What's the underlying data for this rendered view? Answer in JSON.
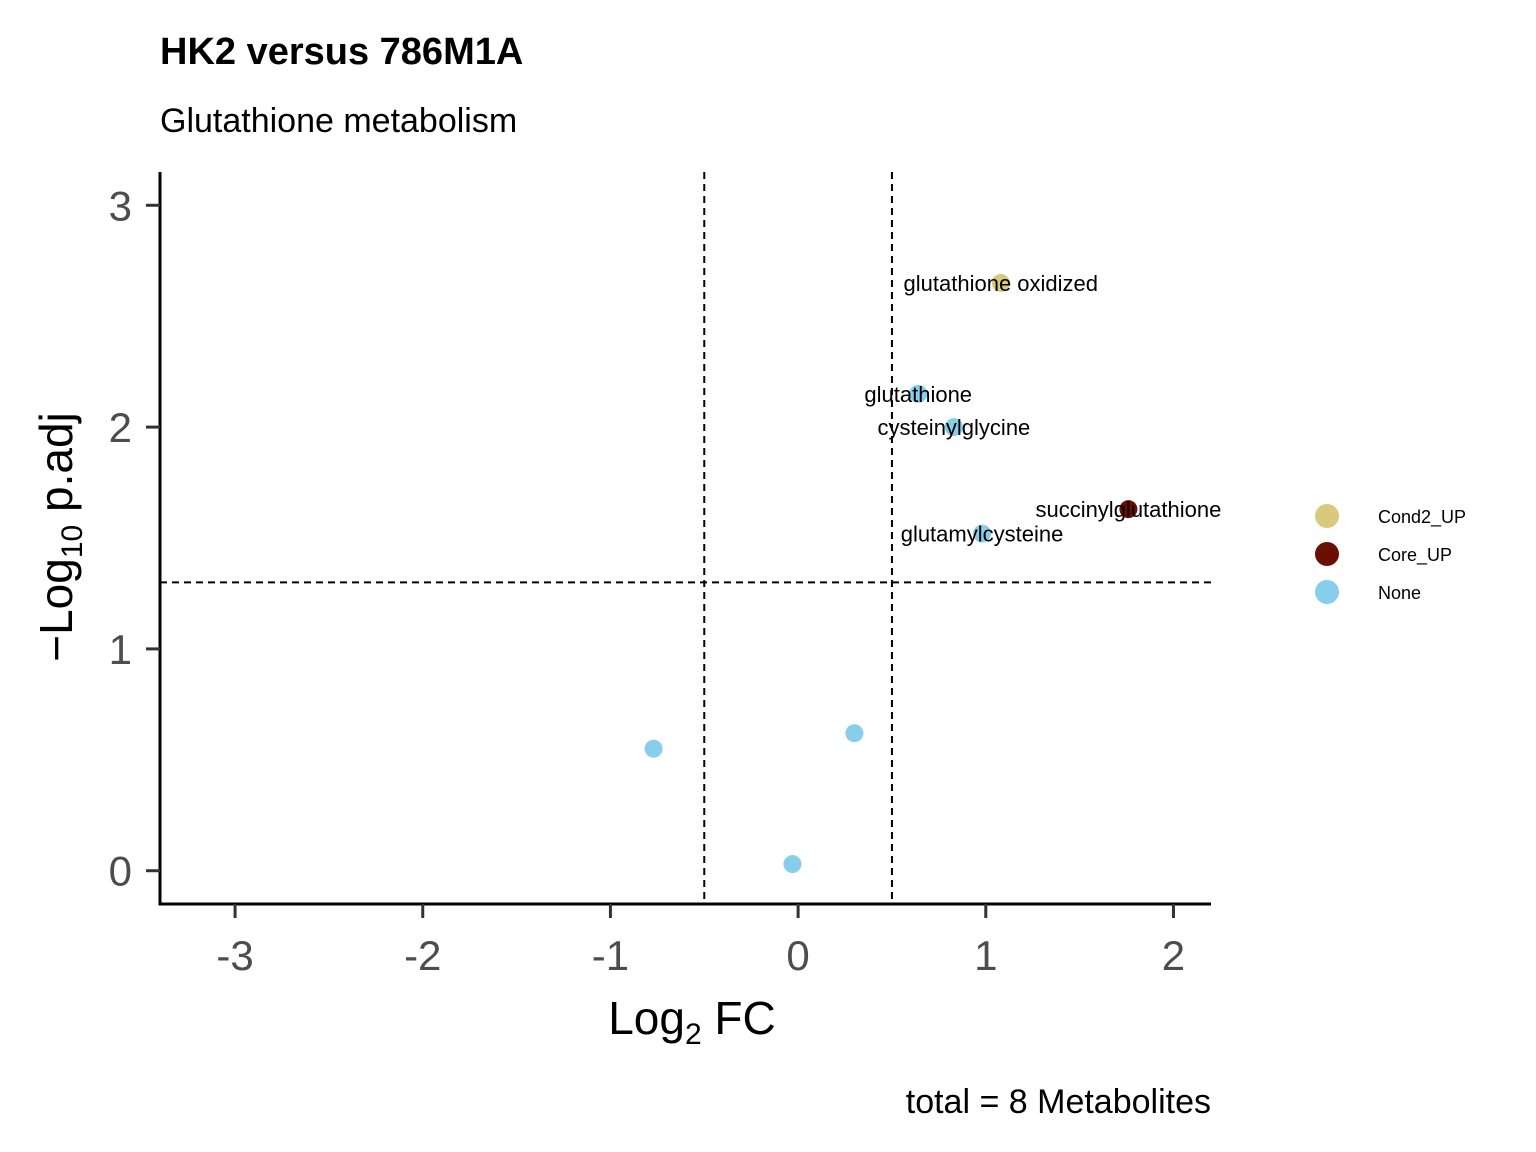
{
  "chart_data": {
    "type": "scatter",
    "title": "HK2 versus 786M1A",
    "subtitle": "Glutathione metabolism",
    "xlabel": {
      "main": "Log",
      "sub": "2",
      "rest": " FC"
    },
    "ylabel": {
      "pre": "−Log",
      "sub": "10",
      "rest": " p.adj"
    },
    "xlim": [
      -3.4,
      2.2
    ],
    "ylim": [
      -0.15,
      3.15
    ],
    "xticks": [
      -3,
      -2,
      -1,
      0,
      1,
      2
    ],
    "xtick_labels": [
      "-3",
      "-2",
      "-1",
      "0",
      "1",
      "2"
    ],
    "yticks": [
      0,
      1,
      2,
      3
    ],
    "ytick_labels": [
      "0",
      "1",
      "2",
      "3"
    ],
    "vlines": [
      -0.5,
      0.5
    ],
    "hline": 1.3,
    "grid": false,
    "legend_position": "right",
    "categories": [
      {
        "name": "Cond2_UP",
        "color": "#d9c97a"
      },
      {
        "name": "Core_UP",
        "color": "#6b0f05"
      },
      {
        "name": "None",
        "color": "#87ceeb"
      }
    ],
    "points": [
      {
        "x": 1.08,
        "y": 2.65,
        "group": "Cond2_UP",
        "label": "glutathione oxidized"
      },
      {
        "x": 0.64,
        "y": 2.15,
        "group": "None",
        "label": "glutathione"
      },
      {
        "x": 0.83,
        "y": 2.0,
        "group": "None",
        "label": "cysteinylglycine"
      },
      {
        "x": 1.76,
        "y": 1.63,
        "group": "Core_UP",
        "label": "succinylglutathione"
      },
      {
        "x": 0.98,
        "y": 1.52,
        "group": "None",
        "label": "glutamylcysteine"
      },
      {
        "x": -0.77,
        "y": 0.55,
        "group": "None",
        "label": ""
      },
      {
        "x": 0.3,
        "y": 0.62,
        "group": "None",
        "label": ""
      },
      {
        "x": -0.03,
        "y": 0.03,
        "group": "None",
        "label": ""
      }
    ],
    "caption": "total = 8 Metabolites"
  }
}
